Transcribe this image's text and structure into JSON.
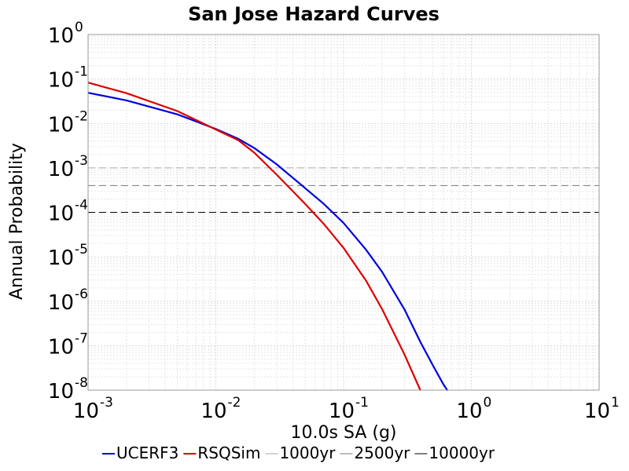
{
  "chart_data": {
    "type": "line",
    "title": "San Jose Hazard Curves",
    "xlabel": "10.0s SA (g)",
    "ylabel": "Annual Probability",
    "xscale": "log",
    "yscale": "log",
    "xlim": [
      0.001,
      10
    ],
    "ylim": [
      1e-08,
      1
    ],
    "grid": true,
    "legend_placement": "bottom",
    "x_ticks": [
      {
        "base": "10",
        "exp": "-3"
      },
      {
        "base": "10",
        "exp": "-2"
      },
      {
        "base": "10",
        "exp": "-1"
      },
      {
        "base": "10",
        "exp": "0"
      },
      {
        "base": "10",
        "exp": "1"
      }
    ],
    "y_ticks": [
      {
        "base": "10",
        "exp": "0"
      },
      {
        "base": "10",
        "exp": "-1"
      },
      {
        "base": "10",
        "exp": "-2"
      },
      {
        "base": "10",
        "exp": "-3"
      },
      {
        "base": "10",
        "exp": "-4"
      },
      {
        "base": "10",
        "exp": "-5"
      },
      {
        "base": "10",
        "exp": "-6"
      },
      {
        "base": "10",
        "exp": "-7"
      },
      {
        "base": "10",
        "exp": "-8"
      }
    ],
    "series": [
      {
        "name": "UCERF3",
        "color": "#0000dd",
        "style": "solid",
        "points": [
          [
            0.001,
            0.049
          ],
          [
            0.002,
            0.033
          ],
          [
            0.005,
            0.016
          ],
          [
            0.01,
            0.0075
          ],
          [
            0.015,
            0.0045
          ],
          [
            0.02,
            0.0028
          ],
          [
            0.03,
            0.0012
          ],
          [
            0.05,
            0.00035
          ],
          [
            0.07,
            0.000155
          ],
          [
            0.1,
            5.75e-05
          ],
          [
            0.15,
            1.44e-05
          ],
          [
            0.2,
            4.6e-06
          ],
          [
            0.3,
            6.5e-07
          ],
          [
            0.4,
            1.2e-07
          ],
          [
            0.5,
            3.6e-08
          ],
          [
            0.6,
            1.4e-08
          ],
          [
            0.65,
            9.8e-09
          ]
        ]
      },
      {
        "name": "RSQSim",
        "color": "#dd0000",
        "style": "solid",
        "points": [
          [
            0.001,
            0.083
          ],
          [
            0.002,
            0.048
          ],
          [
            0.005,
            0.019
          ],
          [
            0.01,
            0.0073
          ],
          [
            0.015,
            0.0042
          ],
          [
            0.02,
            0.0022
          ],
          [
            0.03,
            0.0007
          ],
          [
            0.05,
            0.000155
          ],
          [
            0.07,
            5.5e-05
          ],
          [
            0.1,
            1.58e-05
          ],
          [
            0.15,
            2.9e-06
          ],
          [
            0.2,
            6.7e-07
          ],
          [
            0.3,
            6.3e-08
          ],
          [
            0.4,
            9.8e-09
          ]
        ]
      },
      {
        "name": "1000yr",
        "color": "#aaaaaa",
        "style": "dashed",
        "points": [
          [
            0.001,
            0.001
          ],
          [
            10,
            0.001
          ]
        ]
      },
      {
        "name": "2500yr",
        "color": "#777777",
        "style": "dashed",
        "points": [
          [
            0.001,
            0.0004
          ],
          [
            10,
            0.0004
          ]
        ]
      },
      {
        "name": "10000yr",
        "color": "#000000",
        "style": "dashed",
        "points": [
          [
            0.001,
            0.0001
          ],
          [
            10,
            0.0001
          ]
        ]
      }
    ]
  }
}
